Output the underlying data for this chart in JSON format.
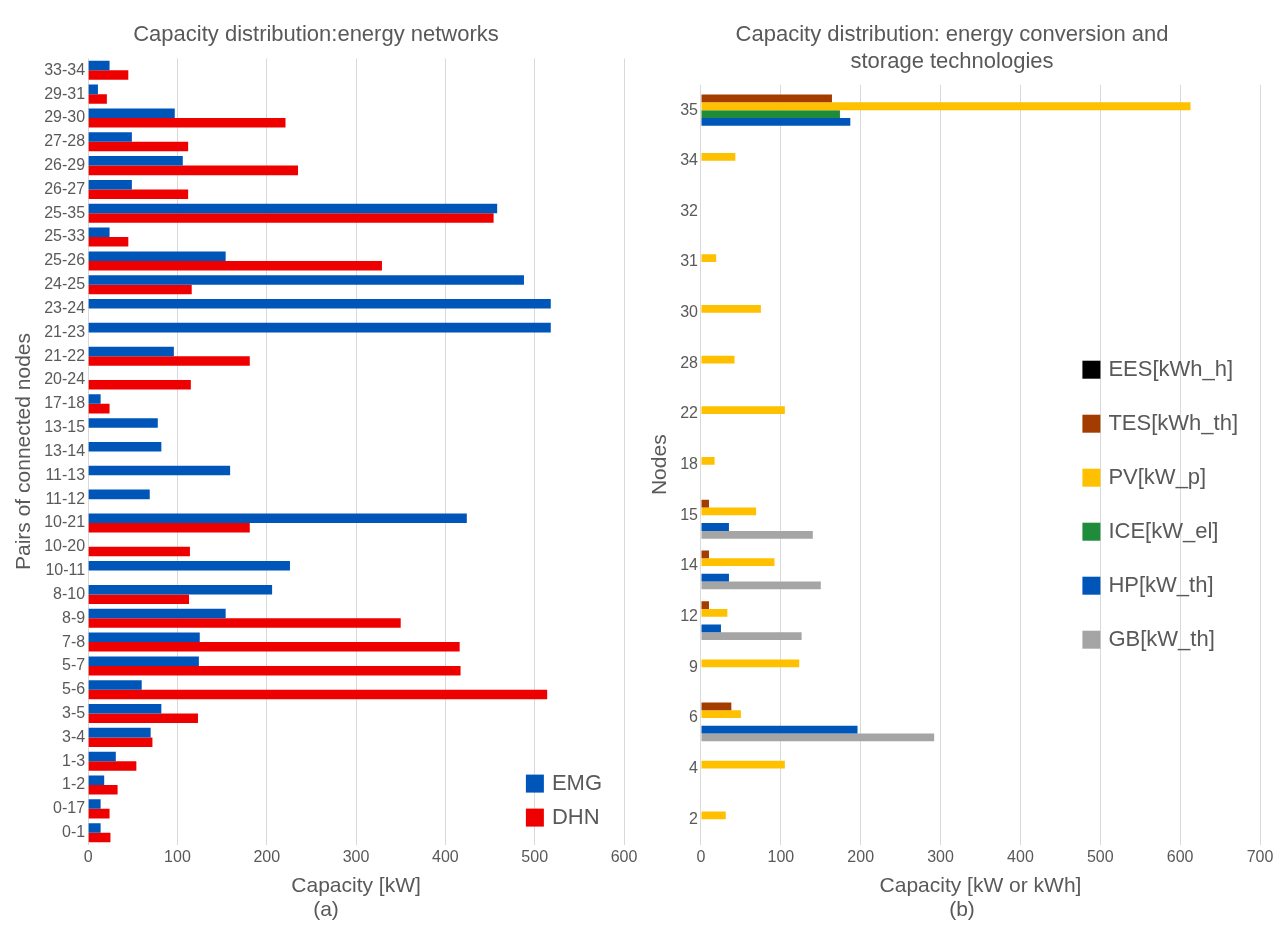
{
  "chart_data": [
    {
      "type": "bar",
      "orientation": "horizontal",
      "title": "Capacity distribution:energy networks",
      "xlabel": "Capacity [kW]",
      "ylabel": "Pairs of connected nodes",
      "annotations": [
        "(a)"
      ],
      "categories": [
        "33-34",
        "29-31",
        "29-30",
        "27-28",
        "26-29",
        "26-27",
        "25-35",
        "25-33",
        "25-26",
        "24-25",
        "23-24",
        "21-23",
        "21-22",
        "20-24",
        "17-18",
        "13-15",
        "13-14",
        "11-13",
        "11-12",
        "10-21",
        "10-20",
        "10-11",
        "8-10",
        "8-9",
        "7-8",
        "5-7",
        "5-6",
        "3-5",
        "3-4",
        "1-3",
        "1-2",
        "0-17",
        "0-1"
      ],
      "series": [
        {
          "name": "EMG",
          "color": "#0055b8",
          "values": [
            24,
            11,
            97,
            49,
            106,
            49,
            458,
            24,
            154,
            488,
            518,
            518,
            96,
            null,
            14,
            78,
            82,
            159,
            69,
            424,
            null,
            226,
            206,
            154,
            125,
            124,
            60,
            82,
            70,
            31,
            18,
            14,
            14
          ]
        },
        {
          "name": "DHN",
          "color": "#ee0000",
          "values": [
            45,
            21,
            221,
            112,
            235,
            112,
            454,
            45,
            329,
            116,
            null,
            null,
            181,
            115,
            24,
            null,
            null,
            null,
            null,
            181,
            114,
            null,
            113,
            350,
            416,
            417,
            514,
            123,
            72,
            54,
            33,
            24,
            25
          ]
        }
      ],
      "xlim": [
        0,
        600
      ],
      "xticks": [
        0,
        100,
        200,
        300,
        400,
        500,
        600
      ],
      "grid": "x",
      "legend": "bottom right"
    },
    {
      "type": "bar",
      "orientation": "horizontal",
      "title": "Capacity distribution: energy conversion and storage technologies",
      "xlabel": "Capacity [kW or kWh]",
      "ylabel": "Nodes",
      "annotations": [
        "(b)"
      ],
      "categories": [
        "35",
        "34",
        "32",
        "31",
        "30",
        "28",
        "22",
        "18",
        "15",
        "14",
        "12",
        "9",
        "6",
        "4",
        "2"
      ],
      "series": [
        {
          "name": "EES[kWh_h]",
          "color": "#000000",
          "values": [
            null,
            null,
            null,
            null,
            null,
            null,
            null,
            null,
            null,
            null,
            null,
            null,
            null,
            null,
            null
          ]
        },
        {
          "name": "TES[kWh_th]",
          "color": "#a33c00",
          "values": [
            164,
            null,
            null,
            null,
            null,
            null,
            null,
            null,
            10,
            10,
            10,
            null,
            38,
            null,
            null
          ]
        },
        {
          "name": "PV[kW_p]",
          "color": "#ffc000",
          "values": [
            613,
            43,
            null,
            19,
            75,
            42,
            105,
            17,
            69,
            92,
            33,
            123,
            50,
            105,
            31
          ]
        },
        {
          "name": "ICE[kW_el]",
          "color": "#1e8c3a",
          "values": [
            174,
            null,
            null,
            null,
            null,
            null,
            null,
            null,
            null,
            null,
            null,
            null,
            null,
            null,
            null
          ]
        },
        {
          "name": "HP[kW_th]",
          "color": "#0055b8",
          "values": [
            187,
            null,
            null,
            null,
            null,
            null,
            null,
            null,
            35,
            35,
            25,
            null,
            196,
            null,
            null
          ]
        },
        {
          "name": "GB[kW_th]",
          "color": "#a5a5a5",
          "values": [
            null,
            null,
            null,
            null,
            null,
            null,
            null,
            null,
            140,
            150,
            126,
            null,
            292,
            null,
            null
          ]
        }
      ],
      "xlim": [
        0,
        700
      ],
      "xticks": [
        0,
        100,
        200,
        300,
        400,
        500,
        600,
        700
      ],
      "grid": "x",
      "legend": "right"
    }
  ]
}
